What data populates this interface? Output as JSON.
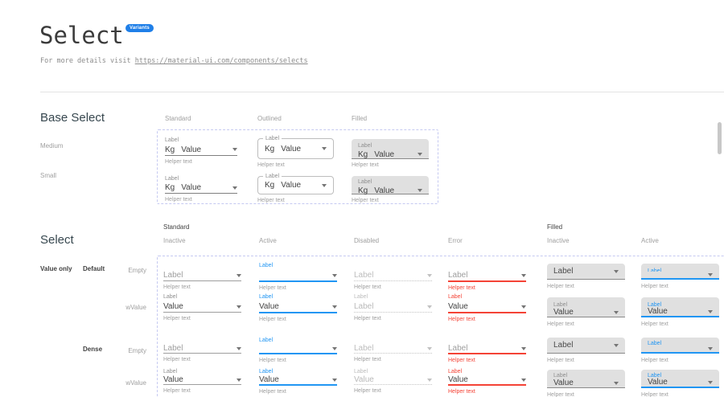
{
  "header": {
    "title": "Select",
    "badge": "Variants",
    "subtitle_prefix": "For more details visit ",
    "subtitle_link": "https://material-ui.com/components/selects"
  },
  "strings": {
    "label": "Label",
    "adornment": "Kg",
    "value": "Value",
    "helper": "Helper text"
  },
  "colors": {
    "accent": "#2196f3",
    "error": "#f44336",
    "badge_bg": "#1f7fe8",
    "filled_bg": "#e0e0e0",
    "dashed_border": "#c5c9f1"
  },
  "base_select": {
    "heading": "Base Select",
    "column_headers": [
      "Standard",
      "Outlined",
      "Filled"
    ],
    "row_headers": [
      "Medium",
      "Small"
    ]
  },
  "select_section": {
    "heading": "Select",
    "group_headers": [
      {
        "label": "Standard",
        "columns": [
          "Inactive",
          "Active",
          "Disabled",
          "Error"
        ]
      },
      {
        "label": "Filled",
        "columns": [
          "Inactive",
          "Active"
        ]
      }
    ],
    "row_group_label": "Value only",
    "row_groups": [
      {
        "label": "Default",
        "rows": [
          "Empty",
          "wValue"
        ]
      },
      {
        "label": "Dense",
        "rows": [
          "Empty",
          "wValue"
        ]
      }
    ],
    "disabled_default_wvalue_text": "Label",
    "grid": {
      "columns": [
        {
          "variant": "standard",
          "state": "inactive"
        },
        {
          "variant": "standard",
          "state": "active"
        },
        {
          "variant": "standard",
          "state": "disabled"
        },
        {
          "variant": "standard",
          "state": "error"
        },
        {
          "variant": "filled",
          "state": "inactive"
        },
        {
          "variant": "filled",
          "state": "active"
        }
      ],
      "rows": [
        {
          "dense": false,
          "withValue": false
        },
        {
          "dense": false,
          "withValue": true
        },
        {
          "dense": true,
          "withValue": false
        },
        {
          "dense": true,
          "withValue": true
        }
      ]
    }
  }
}
